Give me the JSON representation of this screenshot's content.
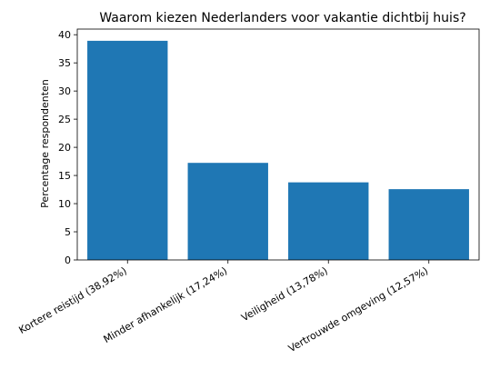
{
  "chart_data": {
    "type": "bar",
    "title": "Waarom kiezen Nederlanders voor vakantie dichtbij huis?",
    "xlabel": "",
    "ylabel": "Percentage respondenten",
    "categories": [
      "Kortere reistijd (38,92%)",
      "Minder afhankelijk (17,24%)",
      "Veiligheid (13,78%)",
      "Vertrouwde omgeving (12,57%)"
    ],
    "values": [
      38.92,
      17.24,
      13.78,
      12.57
    ],
    "ylim": [
      0,
      41
    ],
    "yticks": [
      0,
      5,
      10,
      15,
      20,
      25,
      30,
      35,
      40
    ],
    "bar_color": "#1f77b4",
    "grid": false,
    "legend": "none"
  }
}
